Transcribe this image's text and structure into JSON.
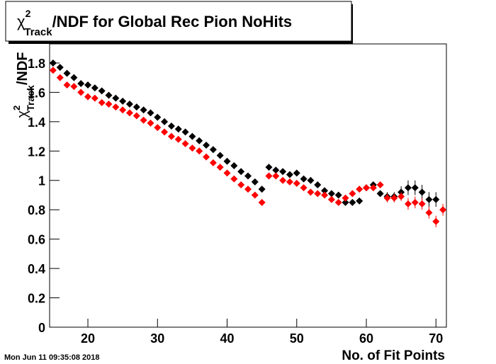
{
  "chart_data": {
    "type": "scatter",
    "title": {
      "symbol": "χ",
      "sup": "2",
      "sub": "Track",
      "text": "/NDF for Global Rec Pion NoHits"
    },
    "y_label": {
      "symbol": "χ",
      "sup": "2",
      "sub": "Track",
      "text": "/NDF"
    },
    "x_label": "No. of Fit Points",
    "timestamp": "Mon Jun 11 09:35:08 2018",
    "x": [
      15,
      16,
      17,
      18,
      19,
      20,
      21,
      22,
      23,
      24,
      25,
      26,
      27,
      28,
      29,
      30,
      31,
      32,
      33,
      34,
      35,
      36,
      37,
      38,
      39,
      40,
      41,
      42,
      43,
      44,
      45,
      46,
      47,
      48,
      49,
      50,
      51,
      52,
      53,
      54,
      55,
      56,
      57,
      58,
      59,
      60,
      61,
      62,
      63,
      64,
      65,
      66,
      67,
      68,
      69,
      70,
      71
    ],
    "series": [
      {
        "color": "#000000",
        "values": [
          1.8,
          1.77,
          1.73,
          1.7,
          1.66,
          1.65,
          1.63,
          1.61,
          1.58,
          1.56,
          1.54,
          1.52,
          1.5,
          1.48,
          1.46,
          1.43,
          1.4,
          1.37,
          1.35,
          1.33,
          1.3,
          1.27,
          1.24,
          1.21,
          1.17,
          1.13,
          1.1,
          1.06,
          1.03,
          0.99,
          0.94,
          1.09,
          1.07,
          1.06,
          1.04,
          1.05,
          1.01,
          1.0,
          0.97,
          0.93,
          0.91,
          0.9,
          0.85,
          0.85,
          0.86,
          0.95,
          0.97,
          0.91,
          0.89,
          0.89,
          0.92,
          0.95,
          0.95,
          0.92,
          0.87,
          0.87,
          null
        ],
        "errors": [
          0.005,
          0.005,
          0.005,
          0.005,
          0.005,
          0.005,
          0.005,
          0.005,
          0.005,
          0.005,
          0.005,
          0.005,
          0.005,
          0.005,
          0.005,
          0.005,
          0.005,
          0.005,
          0.005,
          0.005,
          0.005,
          0.005,
          0.005,
          0.005,
          0.005,
          0.005,
          0.005,
          0.005,
          0.005,
          0.005,
          0.005,
          0.01,
          0.01,
          0.01,
          0.01,
          0.01,
          0.01,
          0.01,
          0.01,
          0.01,
          0.01,
          0.02,
          0.02,
          0.02,
          0.02,
          0.02,
          0.02,
          0.02,
          0.03,
          0.03,
          0.04,
          0.05,
          0.05,
          0.05,
          0.05,
          0.05,
          null
        ]
      },
      {
        "color": "#ff0000",
        "values": [
          1.75,
          1.7,
          1.65,
          1.64,
          1.6,
          1.57,
          1.56,
          1.53,
          1.52,
          1.5,
          1.48,
          1.46,
          1.44,
          1.41,
          1.39,
          1.36,
          1.33,
          1.3,
          1.28,
          1.25,
          1.22,
          1.2,
          1.16,
          1.12,
          1.09,
          1.05,
          1.01,
          0.97,
          0.94,
          0.9,
          0.85,
          1.03,
          1.03,
          1.0,
          0.99,
          0.98,
          0.95,
          0.92,
          0.91,
          0.9,
          0.87,
          0.85,
          0.88,
          0.91,
          0.94,
          0.95,
          0.95,
          0.97,
          0.88,
          0.88,
          0.89,
          0.84,
          0.85,
          0.84,
          0.78,
          0.72,
          0.8
        ],
        "errors": [
          0.005,
          0.005,
          0.005,
          0.005,
          0.005,
          0.005,
          0.005,
          0.005,
          0.005,
          0.005,
          0.005,
          0.005,
          0.005,
          0.005,
          0.005,
          0.005,
          0.005,
          0.005,
          0.005,
          0.005,
          0.005,
          0.005,
          0.005,
          0.005,
          0.005,
          0.005,
          0.005,
          0.005,
          0.005,
          0.005,
          0.005,
          0.01,
          0.01,
          0.01,
          0.01,
          0.01,
          0.01,
          0.01,
          0.01,
          0.01,
          0.01,
          0.02,
          0.02,
          0.02,
          0.02,
          0.02,
          0.02,
          0.02,
          0.03,
          0.03,
          0.03,
          0.04,
          0.04,
          0.04,
          0.04,
          0.04,
          0.04
        ]
      }
    ],
    "xlim": [
      14.5,
      71.5
    ],
    "ylim": [
      0,
      1.93
    ],
    "xticks": [
      20,
      30,
      40,
      50,
      60,
      70
    ],
    "yticks": [
      0,
      0.2,
      0.4,
      0.6,
      0.8,
      1,
      1.2,
      1.4,
      1.6,
      1.8
    ]
  }
}
